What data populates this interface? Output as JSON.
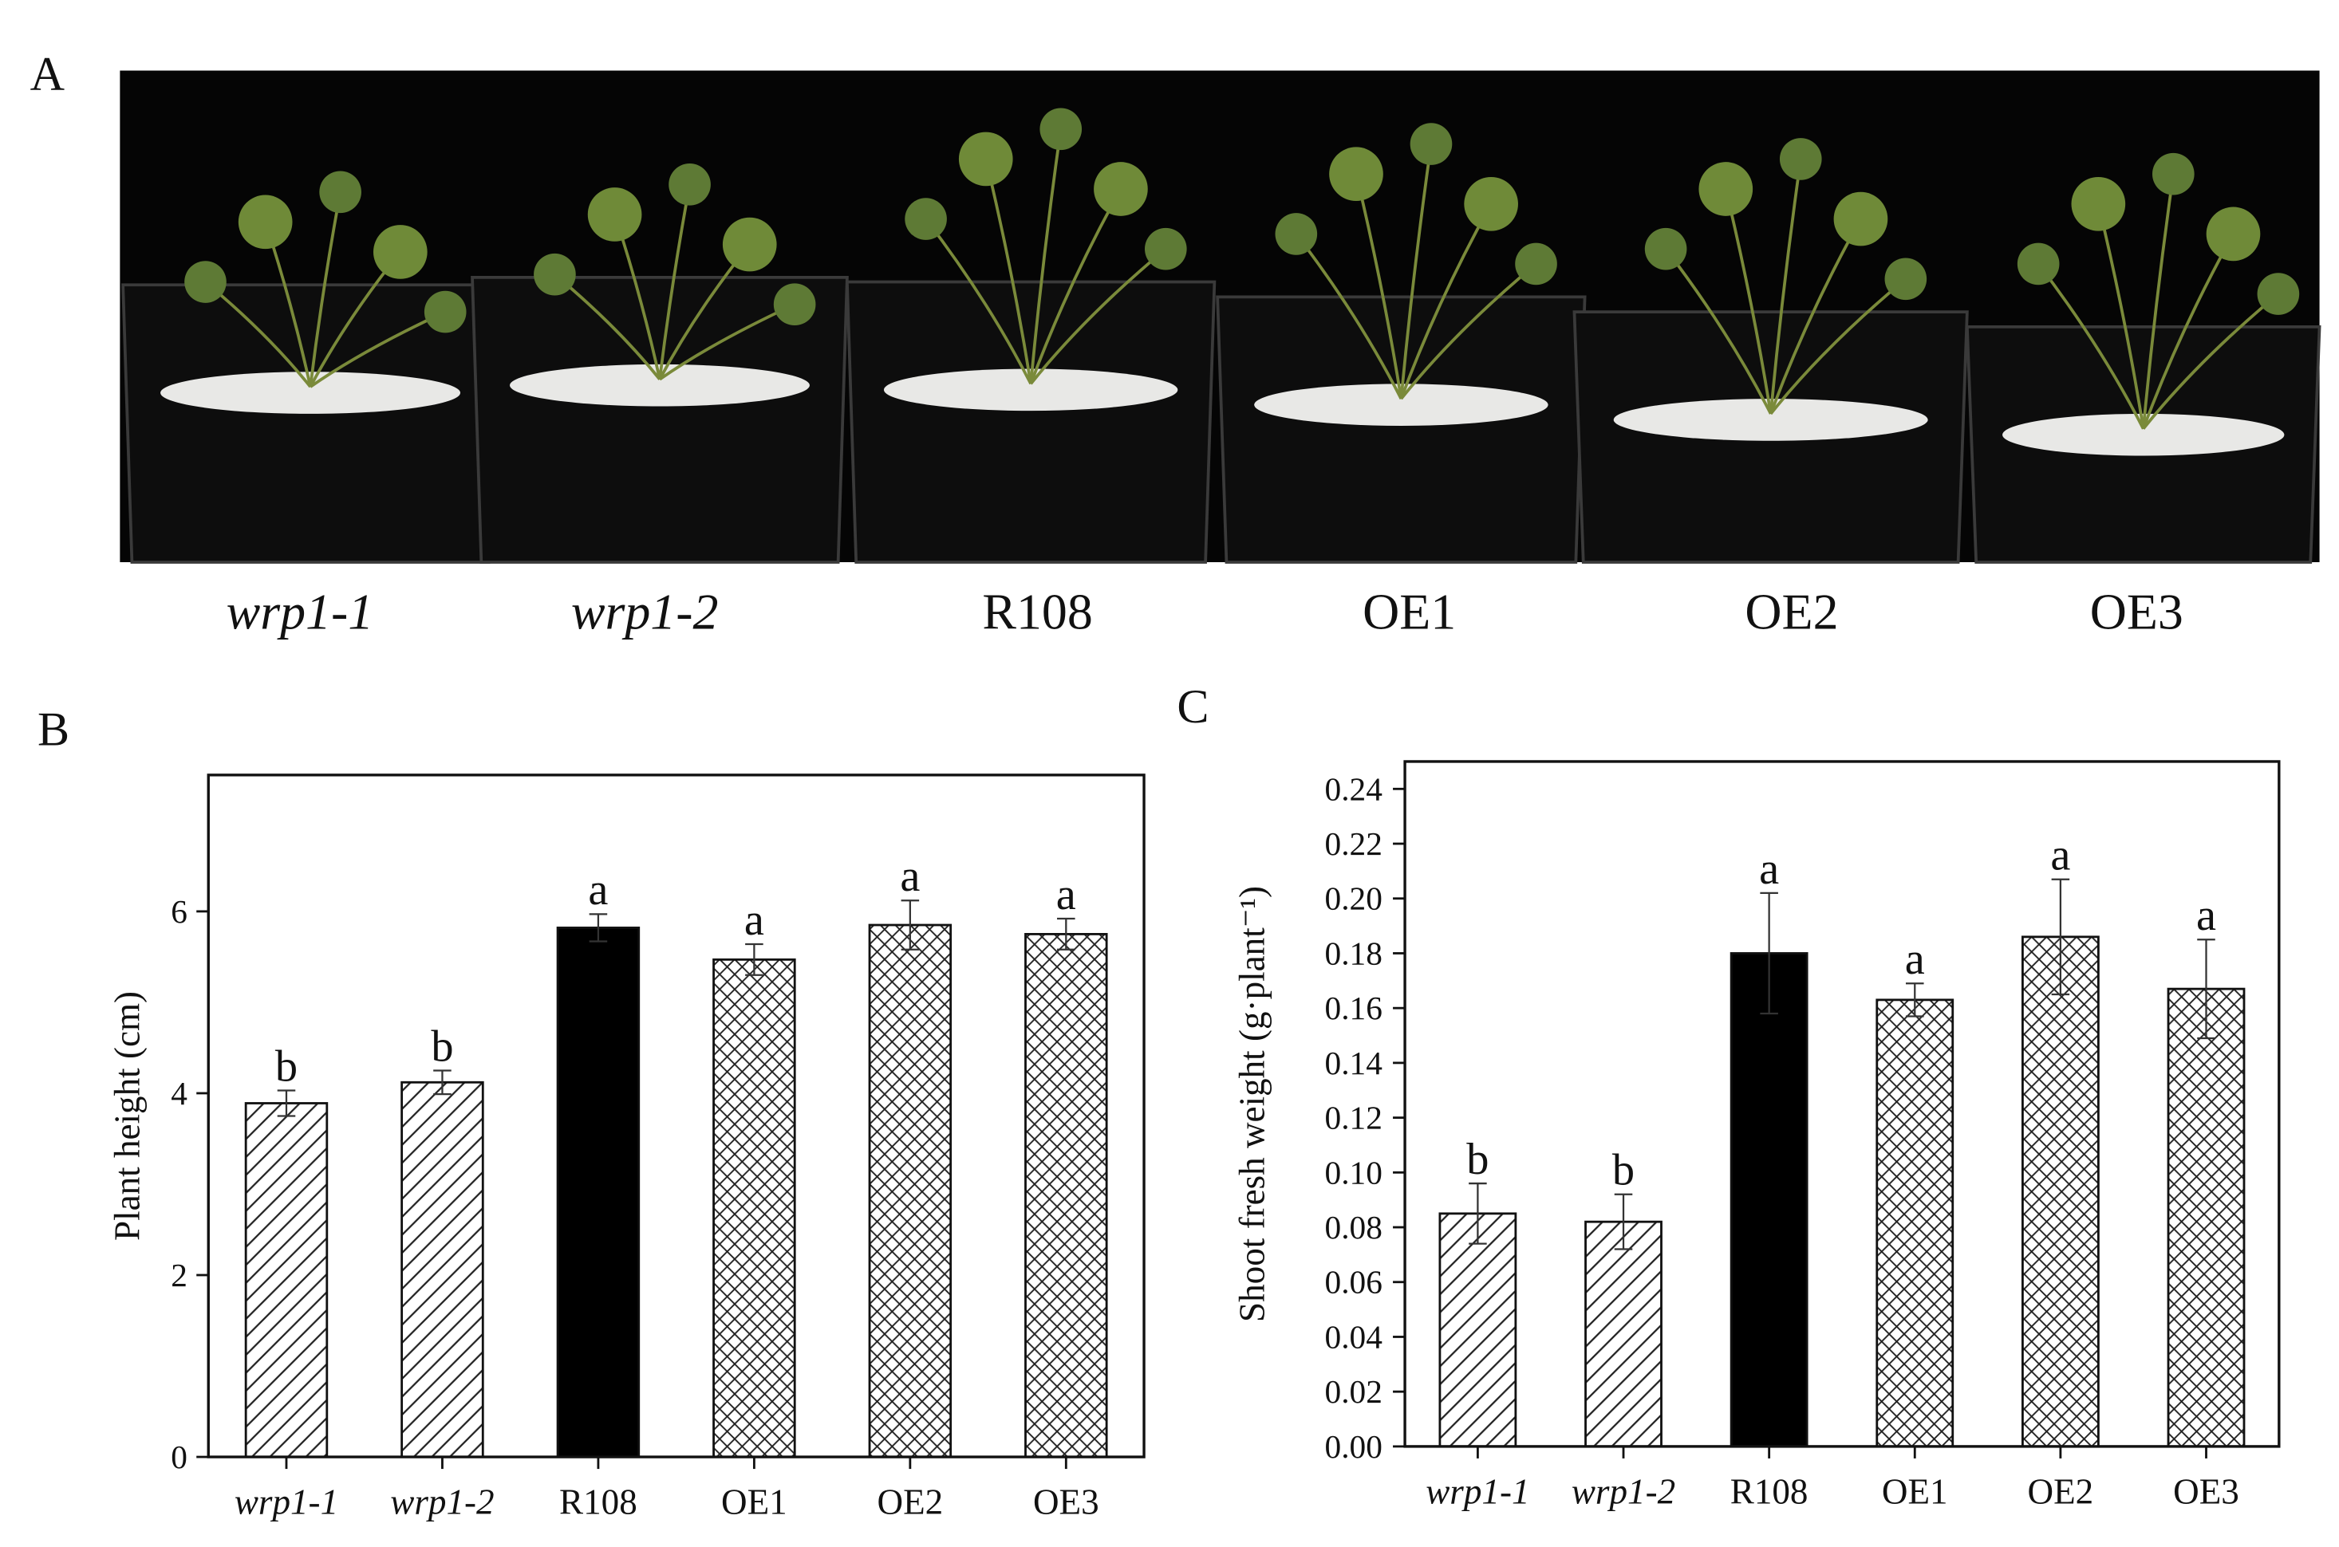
{
  "photo": {
    "label": "A",
    "captions": [
      "wrp1-1",
      "wrp1-2",
      "R108",
      "OE1",
      "OE2",
      "OE3"
    ],
    "italic": [
      true,
      true,
      false,
      false,
      false,
      false
    ]
  },
  "chart_data": [
    {
      "type": "bar",
      "panel": "B",
      "ylabel": "Plant height (cm)",
      "categories": [
        "wrp1-1",
        "wrp1-2",
        "R108",
        "OE1",
        "OE2",
        "OE3"
      ],
      "italic": [
        true,
        true,
        false,
        false,
        false,
        false
      ],
      "values": [
        3.89,
        4.12,
        5.82,
        5.47,
        5.85,
        5.75
      ],
      "errors": [
        0.14,
        0.13,
        0.15,
        0.17,
        0.27,
        0.17
      ],
      "labels": [
        "b",
        "b",
        "a",
        "a",
        "a",
        "a"
      ],
      "fills": [
        "hatch",
        "hatch",
        "solid",
        "cross",
        "cross",
        "cross"
      ],
      "ylim": [
        0,
        7.5
      ],
      "yticks": [
        0,
        2,
        4,
        6
      ]
    },
    {
      "type": "bar",
      "panel": "C",
      "ylabel": "Shoot fresh weight (g·plant⁻¹)",
      "categories": [
        "wrp1-1",
        "wrp1-2",
        "R108",
        "OE1",
        "OE2",
        "OE3"
      ],
      "italic": [
        true,
        true,
        false,
        false,
        false,
        false
      ],
      "values": [
        0.085,
        0.082,
        0.18,
        0.163,
        0.186,
        0.167
      ],
      "errors": [
        0.011,
        0.01,
        0.022,
        0.006,
        0.021,
        0.018
      ],
      "labels": [
        "b",
        "b",
        "a",
        "a",
        "a",
        "a"
      ],
      "fills": [
        "hatch",
        "hatch",
        "solid",
        "cross",
        "cross",
        "cross"
      ],
      "ylim": [
        0,
        0.25
      ],
      "yticks": [
        {
          "value": 0,
          "label": "0.00"
        },
        {
          "value": 0.02,
          "label": "0.02"
        },
        {
          "value": 0.04,
          "label": "0.04"
        },
        {
          "value": 0.06,
          "label": "0.06"
        },
        {
          "value": 0.08,
          "label": "0.08"
        },
        {
          "value": 0.1,
          "label": "0.10"
        },
        {
          "value": 0.12,
          "label": "0.12"
        },
        {
          "value": 0.14,
          "label": "0.14"
        },
        {
          "value": 0.16,
          "label": "0.16"
        },
        {
          "value": 0.18,
          "label": "0.18"
        },
        {
          "value": 0.2,
          "label": "0.20"
        },
        {
          "value": 0.22,
          "label": "0.22"
        },
        {
          "value": 0.24,
          "label": "0.24"
        }
      ]
    }
  ]
}
